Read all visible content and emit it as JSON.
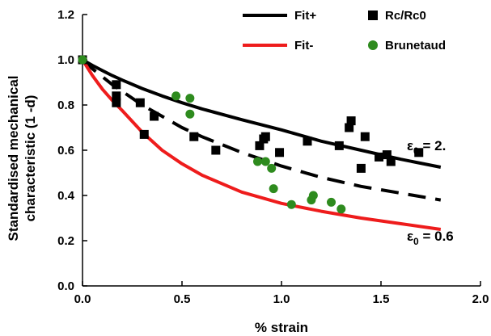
{
  "chart_data": {
    "type": "scatter",
    "xlabel": "% strain",
    "ylabel": "Standardised mechanical characteristic (1 -d)",
    "xlim": [
      0,
      2.0
    ],
    "ylim": [
      0,
      1.2
    ],
    "x_ticks": [
      "0.0",
      "0.5",
      "1.0",
      "1.5",
      "2.0"
    ],
    "y_ticks": [
      "0.0",
      "0.2",
      "0.4",
      "0.6",
      "0.8",
      "1.0",
      "1.2"
    ],
    "grid": false,
    "legend_position": "top",
    "series": [
      {
        "name": "Fit+",
        "kind": "line",
        "style": "solid",
        "color": "#000000",
        "x": [
          0,
          0.05,
          0.1,
          0.15,
          0.2,
          0.3,
          0.4,
          0.5,
          0.6,
          0.8,
          1.0,
          1.2,
          1.4,
          1.6,
          1.8
        ],
        "y": [
          1.0,
          0.975,
          0.952,
          0.93,
          0.91,
          0.873,
          0.84,
          0.81,
          0.783,
          0.735,
          0.69,
          0.64,
          0.6,
          0.56,
          0.525
        ]
      },
      {
        "name": "",
        "kind": "line",
        "style": "dashed",
        "color": "#000000",
        "x": [
          0,
          0.05,
          0.1,
          0.15,
          0.2,
          0.3,
          0.4,
          0.5,
          0.6,
          0.8,
          1.0,
          1.2,
          1.4,
          1.6,
          1.8
        ],
        "y": [
          1.0,
          0.96,
          0.925,
          0.89,
          0.86,
          0.8,
          0.75,
          0.7,
          0.66,
          0.59,
          0.53,
          0.48,
          0.44,
          0.41,
          0.38
        ]
      },
      {
        "name": "Fit-",
        "kind": "line",
        "style": "solid",
        "color": "#ee1c1c",
        "x": [
          0,
          0.05,
          0.1,
          0.15,
          0.2,
          0.3,
          0.4,
          0.5,
          0.6,
          0.8,
          1.0,
          1.2,
          1.4,
          1.6,
          1.8
        ],
        "y": [
          1.0,
          0.93,
          0.87,
          0.82,
          0.775,
          0.68,
          0.6,
          0.54,
          0.49,
          0.415,
          0.365,
          0.33,
          0.3,
          0.275,
          0.25
        ]
      },
      {
        "name": "Rc/Rc0",
        "kind": "marker",
        "marker": "square",
        "color": "#000000",
        "x": [
          0.0,
          0.17,
          0.17,
          0.17,
          0.29,
          0.31,
          0.36,
          0.56,
          0.67,
          0.89,
          0.91,
          0.92,
          0.99,
          1.13,
          1.29,
          1.34,
          1.35,
          1.4,
          1.42,
          1.49,
          1.53,
          1.55,
          1.69
        ],
        "y": [
          1.0,
          0.89,
          0.84,
          0.81,
          0.81,
          0.67,
          0.75,
          0.66,
          0.6,
          0.62,
          0.65,
          0.66,
          0.59,
          0.64,
          0.62,
          0.7,
          0.73,
          0.52,
          0.66,
          0.57,
          0.58,
          0.55,
          0.59
        ]
      },
      {
        "name": "Brunetaud",
        "kind": "marker",
        "marker": "circle",
        "color": "#2e8b1e",
        "x": [
          0.0,
          0.47,
          0.54,
          0.54,
          0.88,
          0.92,
          0.95,
          0.96,
          1.05,
          1.15,
          1.16,
          1.25,
          1.3
        ],
        "y": [
          1.0,
          0.84,
          0.83,
          0.76,
          0.55,
          0.55,
          0.52,
          0.43,
          0.36,
          0.38,
          0.4,
          0.37,
          0.34
        ]
      }
    ],
    "annotations": [
      {
        "base": "ε",
        "sub": "0",
        "rest": " = 2.",
        "x": 1.63,
        "y": 0.6
      },
      {
        "base": "ε",
        "sub": "0",
        "rest": " = 0.6",
        "x": 1.63,
        "y": 0.2
      }
    ]
  }
}
